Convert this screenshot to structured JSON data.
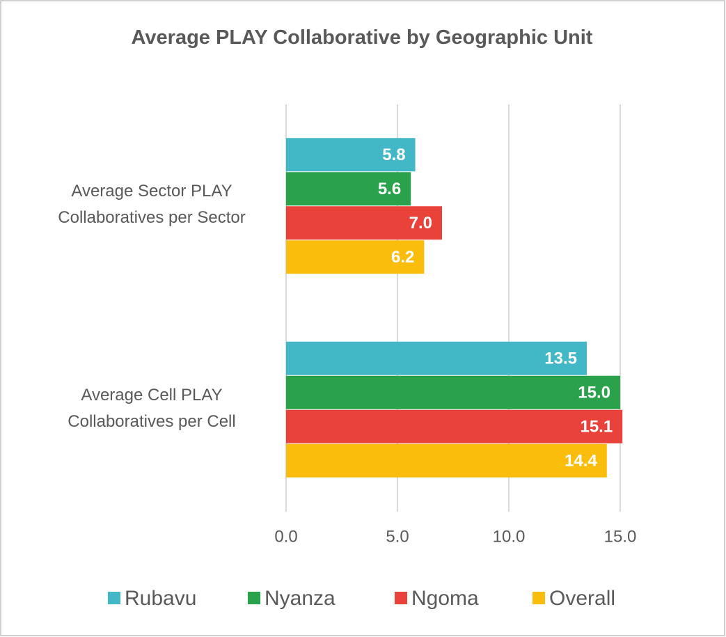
{
  "chart_data": {
    "type": "barh",
    "title": "Average PLAY Collaborative by Geographic Unit",
    "categories": [
      "Average Sector PLAY Collaboratives per Sector",
      "Average Cell PLAY Collaboratives per Cell"
    ],
    "series": [
      {
        "name": "Rubavu",
        "color": "#42b8c6",
        "values": [
          5.8,
          13.5
        ],
        "value_labels": [
          "5.8",
          "13.5"
        ]
      },
      {
        "name": "Nyanza",
        "color": "#2aa24c",
        "values": [
          5.6,
          15.0
        ],
        "value_labels": [
          "5.6",
          "15.0"
        ]
      },
      {
        "name": "Ngoma",
        "color": "#e8423a",
        "values": [
          7.0,
          15.1
        ],
        "value_labels": [
          "7.0",
          "15.1"
        ]
      },
      {
        "name": "Overall",
        "color": "#fbbd0c",
        "values": [
          6.2,
          14.4
        ],
        "value_labels": [
          "6.2",
          "14.4"
        ]
      }
    ],
    "xlim": [
      0,
      16
    ],
    "xticks": [
      {
        "value": 0,
        "label": "0.0"
      },
      {
        "value": 5,
        "label": "5.0"
      },
      {
        "value": 10,
        "label": "10.0"
      },
      {
        "value": 15,
        "label": "15.0"
      }
    ],
    "grid": true,
    "legend": "bottom"
  }
}
